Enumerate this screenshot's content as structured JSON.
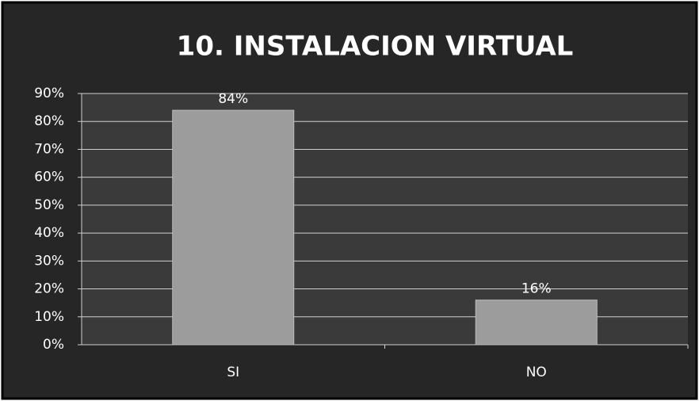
{
  "chart_data": {
    "type": "bar",
    "title": "10. INSTALACION VIRTUAL",
    "categories": [
      "SI",
      "NO"
    ],
    "values": [
      84,
      16
    ],
    "value_labels": [
      "84%",
      "16%"
    ],
    "color": "#9c9c9c",
    "ylim": [
      0,
      90
    ],
    "yticks": [
      {
        "value": 0,
        "label": "0%"
      },
      {
        "value": 10,
        "label": "10%"
      },
      {
        "value": 20,
        "label": "20%"
      },
      {
        "value": 30,
        "label": "30%"
      },
      {
        "value": 40,
        "label": "40%"
      },
      {
        "value": 50,
        "label": "50%"
      },
      {
        "value": 60,
        "label": "60%"
      },
      {
        "value": 70,
        "label": "70%"
      },
      {
        "value": 80,
        "label": "80%"
      },
      {
        "value": 90,
        "label": "90%"
      }
    ],
    "grid": true
  }
}
